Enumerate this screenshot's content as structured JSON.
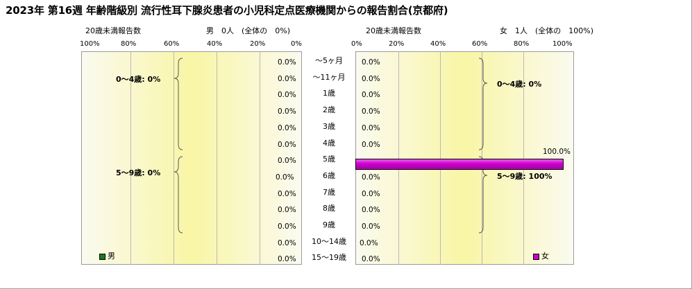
{
  "title": "2023年 第16週 年齢階級別 流行性耳下腺炎患者の小児科定点医療機関からの報告割合(京都府)",
  "left_panel": {
    "subtitle_left": "20歳未満報告数",
    "subtitle_right": "男　0人　(全体の　0%)",
    "ticks": [
      "100%",
      "80%",
      "60%",
      "40%",
      "20%",
      "0%"
    ],
    "legend": "男",
    "legend_color": "#1a7a1a",
    "groups": [
      "0～4歳: 0%",
      "5～9歳: 0%"
    ]
  },
  "right_panel": {
    "subtitle_left": "20歳未満報告数",
    "subtitle_right": "女　1人　(全体の　100%)",
    "ticks": [
      "0%",
      "20%",
      "40%",
      "60%",
      "80%",
      "100%"
    ],
    "legend": "女",
    "legend_color": "#cc00cc",
    "groups": [
      "0～4歳: 0%",
      "5～9歳: 100%"
    ]
  },
  "chart_data": {
    "type": "bar",
    "orientation": "horizontal-population-pyramid",
    "categories": [
      "～5ヶ月",
      "～11ヶ月",
      "1歳",
      "2歳",
      "3歳",
      "4歳",
      "5歳",
      "6歳",
      "7歳",
      "8歳",
      "9歳",
      "10～14歳",
      "15～19歳"
    ],
    "series": [
      {
        "name": "男",
        "color": "#1a7a1a",
        "values": [
          0,
          0,
          0,
          0,
          0,
          0,
          0,
          0,
          0,
          0,
          0,
          0,
          0
        ],
        "labels": [
          "0.0%",
          "0.0%",
          "0.0%",
          "0.0%",
          "0.0%",
          "0.0%",
          "0.0%",
          "0.0%",
          "0.0%",
          "0.0%",
          "0.0%",
          "0.0%",
          "0.0%"
        ]
      },
      {
        "name": "女",
        "color": "#cc00cc",
        "values": [
          0,
          0,
          0,
          0,
          0,
          0,
          100,
          0,
          0,
          0,
          0,
          0,
          0
        ],
        "labels": [
          "0.0%",
          "0.0%",
          "0.0%",
          "0.0%",
          "0.0%",
          "0.0%",
          "100.0%",
          "0.0%",
          "0.0%",
          "0.0%",
          "0.0%",
          "0.0%",
          "0.0%"
        ]
      }
    ],
    "xlim": [
      0,
      100
    ],
    "grid": true
  }
}
